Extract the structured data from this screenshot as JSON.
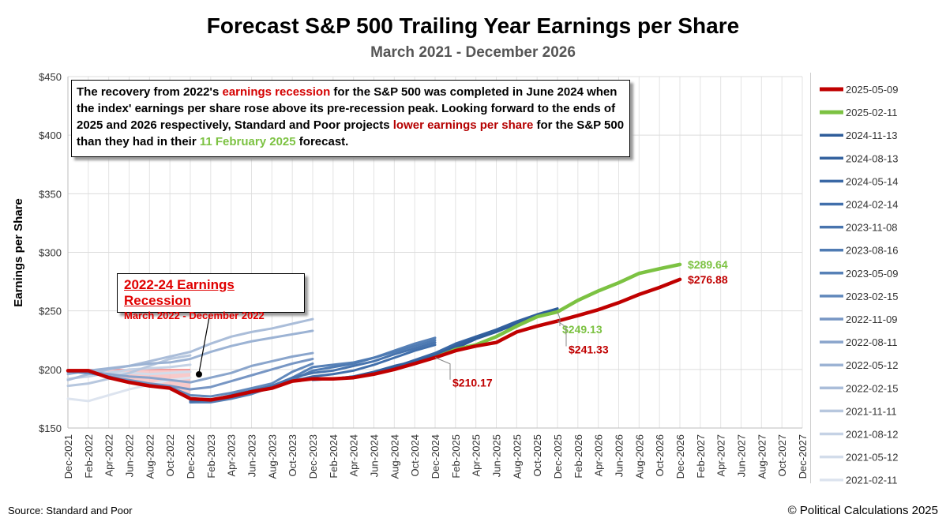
{
  "chart_data": {
    "type": "line",
    "title": "Forecast S&P 500 Trailing Year Earnings per Share",
    "subtitle": "March 2021 - December 2026",
    "ylabel": "Earnings per Share",
    "ylim": [
      150,
      450
    ],
    "yticks": [
      "$150",
      "$200",
      "$250",
      "$300",
      "$350",
      "$400",
      "$450"
    ],
    "x_tick_labels": [
      "Dec-2021",
      "Feb-2022",
      "Apr-2022",
      "Jun-2022",
      "Aug-2022",
      "Oct-2022",
      "Dec-2022",
      "Feb-2023",
      "Apr-2023",
      "Jun-2023",
      "Aug-2023",
      "Oct-2023",
      "Dec-2023",
      "Feb-2024",
      "Apr-2024",
      "Jun-2024",
      "Aug-2024",
      "Oct-2024",
      "Dec-2024",
      "Feb-2025",
      "Apr-2025",
      "Jun-2025",
      "Aug-2025",
      "Oct-2025",
      "Dec-2025",
      "Feb-2026",
      "Apr-2026",
      "Jun-2026",
      "Aug-2026",
      "Oct-2026",
      "Dec-2026",
      "Feb-2027",
      "Apr-2027",
      "Jun-2027",
      "Aug-2027",
      "Oct-2027",
      "Dec-2027"
    ],
    "grid": true,
    "legend_position": "right",
    "series": [
      {
        "name": "2025-05-09",
        "color": "#c00000",
        "x": [
          "Dec-2021",
          "Feb-2022",
          "Apr-2022",
          "Jun-2022",
          "Aug-2022",
          "Oct-2022",
          "Dec-2022",
          "Feb-2023",
          "Apr-2023",
          "Jun-2023",
          "Aug-2023",
          "Oct-2023",
          "Dec-2023",
          "Feb-2024",
          "Apr-2024",
          "Jun-2024",
          "Aug-2024",
          "Oct-2024",
          "Dec-2024",
          "Feb-2025",
          "Apr-2025",
          "Jun-2025",
          "Aug-2025",
          "Oct-2025",
          "Dec-2025",
          "Feb-2026",
          "Apr-2026",
          "Jun-2026",
          "Aug-2026",
          "Oct-2026",
          "Dec-2026"
        ],
        "values": [
          199,
          199,
          193,
          189,
          186,
          184,
          175,
          174,
          177,
          181,
          184,
          190,
          192,
          192,
          193,
          196,
          200,
          205,
          210.17,
          216,
          220,
          223,
          232,
          237,
          241.33,
          246,
          251,
          257,
          264,
          270,
          276.88
        ]
      },
      {
        "name": "2025-02-11",
        "color": "#7cc242",
        "x": [
          "Dec-2024",
          "Feb-2025",
          "Apr-2025",
          "Jun-2025",
          "Aug-2025",
          "Oct-2025",
          "Dec-2025",
          "Feb-2026",
          "Apr-2026",
          "Jun-2026",
          "Aug-2026",
          "Oct-2026",
          "Dec-2026"
        ],
        "values": [
          210.17,
          217,
          221,
          228,
          237,
          245,
          249.13,
          259,
          267,
          274,
          282,
          286,
          289.64
        ]
      },
      {
        "name": "2024-11-13",
        "color": "#2e5c9a",
        "x": [
          "Dec-2023",
          "Feb-2024",
          "Apr-2024",
          "Jun-2024",
          "Aug-2024",
          "Oct-2024",
          "Dec-2024",
          "Feb-2025",
          "Apr-2025",
          "Jun-2025",
          "Aug-2025",
          "Oct-2025",
          "Dec-2025"
        ],
        "values": [
          192,
          192,
          193,
          196,
          201,
          205,
          210,
          218,
          226,
          232,
          239,
          246,
          252
        ]
      },
      {
        "name": "2024-08-13",
        "color": "#33619e",
        "x": [
          "Dec-2023",
          "Feb-2024",
          "Apr-2024",
          "Jun-2024",
          "Aug-2024",
          "Oct-2024",
          "Dec-2024",
          "Feb-2025",
          "Apr-2025",
          "Jun-2025",
          "Aug-2025",
          "Oct-2025",
          "Dec-2025"
        ],
        "values": [
          192,
          192,
          194,
          198,
          203,
          207,
          212,
          220,
          228,
          234,
          241,
          247,
          252
        ]
      },
      {
        "name": "2024-05-14",
        "color": "#3a68a5",
        "x": [
          "Dec-2023",
          "Feb-2024",
          "Apr-2024",
          "Jun-2024",
          "Aug-2024",
          "Oct-2024",
          "Dec-2024",
          "Feb-2025",
          "Apr-2025",
          "Jun-2025",
          "Aug-2025",
          "Oct-2025",
          "Dec-2025"
        ],
        "values": [
          191,
          192,
          194,
          197,
          202,
          208,
          214,
          222,
          228,
          233,
          238,
          245,
          251
        ]
      },
      {
        "name": "2024-02-14",
        "color": "#416fab",
        "x": [
          "Dec-2022",
          "Feb-2023",
          "Apr-2023",
          "Jun-2023",
          "Aug-2023",
          "Oct-2023",
          "Dec-2023",
          "Feb-2024",
          "Apr-2024",
          "Jun-2024",
          "Aug-2024",
          "Oct-2024",
          "Dec-2024"
        ],
        "values": [
          173,
          174,
          177,
          181,
          184,
          190,
          194,
          196,
          199,
          204,
          210,
          216,
          221
        ]
      },
      {
        "name": "2023-11-08",
        "color": "#4874ae",
        "x": [
          "Dec-2022",
          "Feb-2023",
          "Apr-2023",
          "Jun-2023",
          "Aug-2023",
          "Oct-2023",
          "Dec-2023",
          "Feb-2024",
          "Apr-2024",
          "Jun-2024",
          "Aug-2024",
          "Oct-2024",
          "Dec-2024"
        ],
        "values": [
          173,
          174,
          178,
          182,
          186,
          193,
          197,
          199,
          203,
          207,
          213,
          218,
          223
        ]
      },
      {
        "name": "2023-08-16",
        "color": "#4f7bb3",
        "x": [
          "Dec-2022",
          "Feb-2023",
          "Apr-2023",
          "Jun-2023",
          "Aug-2023",
          "Oct-2023",
          "Dec-2023",
          "Feb-2024",
          "Apr-2024",
          "Jun-2024",
          "Aug-2024",
          "Oct-2024",
          "Dec-2024"
        ],
        "values": [
          172,
          173,
          176,
          180,
          184,
          191,
          199,
          202,
          205,
          210,
          215,
          220,
          225
        ]
      },
      {
        "name": "2023-05-09",
        "color": "#5781b7",
        "x": [
          "Dec-2022",
          "Feb-2023",
          "Apr-2023",
          "Jun-2023",
          "Aug-2023",
          "Oct-2023",
          "Dec-2023",
          "Feb-2024",
          "Apr-2024",
          "Jun-2024",
          "Aug-2024",
          "Oct-2024",
          "Dec-2024"
        ],
        "values": [
          172,
          172,
          175,
          179,
          185,
          193,
          202,
          204,
          206,
          210,
          216,
          222,
          227
        ]
      },
      {
        "name": "2023-02-15",
        "color": "#6289bc",
        "x": [
          "Dec-2021",
          "Feb-2022",
          "Apr-2022",
          "Jun-2022",
          "Aug-2022",
          "Oct-2022",
          "Dec-2022",
          "Feb-2023",
          "Apr-2023",
          "Jun-2023",
          "Aug-2023",
          "Oct-2023",
          "Dec-2023"
        ],
        "values": [
          198,
          197,
          194,
          190,
          187,
          185,
          178,
          177,
          180,
          184,
          188,
          198,
          205
        ]
      },
      {
        "name": "2022-11-09",
        "color": "#7796c4",
        "x": [
          "Dec-2021",
          "Feb-2022",
          "Apr-2022",
          "Jun-2022",
          "Aug-2022",
          "Oct-2022",
          "Dec-2022",
          "Feb-2023",
          "Apr-2023",
          "Jun-2023",
          "Aug-2023",
          "Oct-2023",
          "Dec-2023"
        ],
        "values": [
          198,
          197,
          194,
          191,
          188,
          186,
          183,
          185,
          190,
          195,
          200,
          205,
          209
        ]
      },
      {
        "name": "2022-08-11",
        "color": "#8aa5cc",
        "x": [
          "Dec-2021",
          "Feb-2022",
          "Apr-2022",
          "Jun-2022",
          "Aug-2022",
          "Oct-2022",
          "Dec-2022",
          "Feb-2023",
          "Apr-2023",
          "Jun-2023",
          "Aug-2023",
          "Oct-2023",
          "Dec-2023"
        ],
        "values": [
          198,
          198,
          196,
          194,
          193,
          191,
          189,
          193,
          197,
          203,
          207,
          211,
          214
        ]
      },
      {
        "name": "2022-05-12",
        "color": "#9cb3d4",
        "x": [
          "Dec-2021",
          "Feb-2022",
          "Apr-2022",
          "Jun-2022",
          "Aug-2022",
          "Oct-2022",
          "Dec-2022",
          "Feb-2023",
          "Apr-2023",
          "Jun-2023",
          "Aug-2023",
          "Oct-2023",
          "Dec-2023"
        ],
        "values": [
          196,
          199,
          201,
          203,
          205,
          206,
          209,
          215,
          220,
          224,
          227,
          230,
          233
        ]
      },
      {
        "name": "2022-02-15",
        "color": "#aabdd9",
        "x": [
          "Dec-2021",
          "Feb-2022",
          "Apr-2022",
          "Jun-2022",
          "Aug-2022",
          "Oct-2022",
          "Dec-2022",
          "Feb-2023",
          "Apr-2023",
          "Jun-2023",
          "Aug-2023",
          "Oct-2023",
          "Dec-2023"
        ],
        "values": [
          191,
          196,
          200,
          203,
          207,
          211,
          215,
          222,
          228,
          232,
          235,
          239,
          243
        ]
      },
      {
        "name": "2021-11-11",
        "color": "#b7c7de",
        "x": [
          "Dec-2021",
          "Feb-2022",
          "Apr-2022",
          "Jun-2022",
          "Aug-2022",
          "Oct-2022",
          "Dec-2022"
        ],
        "values": [
          186,
          188,
          192,
          197,
          203,
          209,
          212
        ]
      },
      {
        "name": "2021-08-12",
        "color": "#c5d2e5",
        "x": [
          "Dec-2021",
          "Feb-2022",
          "Apr-2022",
          "Jun-2022",
          "Aug-2022",
          "Oct-2022",
          "Dec-2022"
        ],
        "values": [
          192,
          194,
          197,
          200,
          201,
          202,
          204
        ]
      },
      {
        "name": "2021-05-12",
        "color": "#d2dcea",
        "x": [
          "Dec-2021",
          "Feb-2022",
          "Apr-2022",
          "Jun-2022",
          "Aug-2022",
          "Oct-2022",
          "Dec-2022"
        ],
        "values": [
          197,
          198,
          197,
          197,
          196,
          197,
          198
        ]
      },
      {
        "name": "2021-02-11",
        "color": "#dde4ef",
        "x": [
          "Dec-2021",
          "Feb-2022",
          "Apr-2022",
          "Jun-2022",
          "Aug-2022",
          "Oct-2022",
          "Dec-2022"
        ],
        "values": [
          175,
          173,
          178,
          183,
          187,
          191,
          193
        ]
      }
    ],
    "recession_shading": {
      "from": "Dec-2021",
      "to": "Dec-2022",
      "upper": 200,
      "lower_series": "2025-05-09"
    },
    "end_labels": [
      {
        "text": "$289.64",
        "series": "2025-02-11",
        "x": "Dec-2026",
        "color": "#7cc242"
      },
      {
        "text": "$276.88",
        "series": "2025-05-09",
        "x": "Dec-2026",
        "color": "#c00000"
      },
      {
        "text": "$249.13",
        "series": "2025-02-11",
        "x": "Dec-2025",
        "color": "#7cc242"
      },
      {
        "text": "$241.33",
        "series": "2025-05-09",
        "x": "Dec-2025",
        "color": "#c00000"
      },
      {
        "text": "$210.17",
        "series": "2025-05-09",
        "x": "Dec-2024",
        "color": "#c00000"
      }
    ],
    "annotation": {
      "p1": "The recovery from 2022's ",
      "h1": "earnings recession",
      "p2": " for the S&P 500 was completed in June 2024 when the index' earnings per share rose above its pre-recession peak. Looking forward to the ends of 2025 and 2026 respectively, Standard and Poor projects ",
      "h2": "lower earnings per share",
      "p3": " for the S&P 500 than they had in their ",
      "h3": "11 February 2025",
      "p4": " forecast."
    },
    "recession_box": {
      "title": "2022-24 Earnings Recession",
      "subtitle": "March 2022 - December 2022"
    },
    "source": "Source: Standard and Poor",
    "copyright": "© Political Calculations 2025"
  }
}
